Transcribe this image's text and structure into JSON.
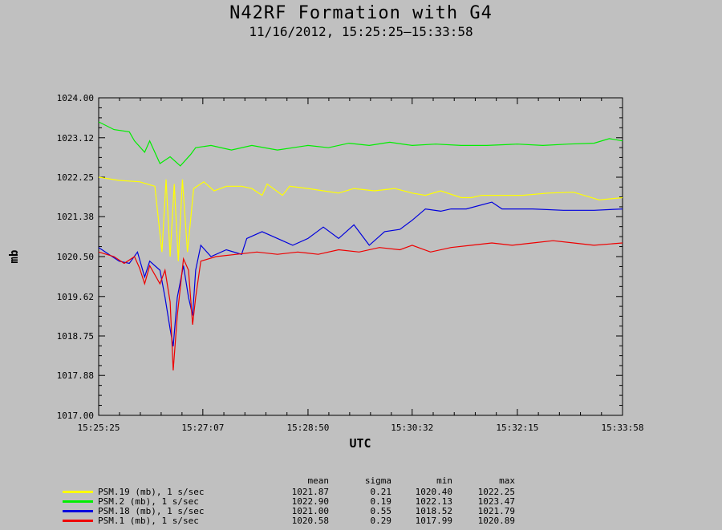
{
  "chart_data": {
    "type": "line",
    "title": "N42RF Formation with G4",
    "subtitle": "11/16/2012, 15:25:25–15:33:58",
    "xlabel": "UTC",
    "ylabel": "mb",
    "xlim": [
      "15:25:25",
      "15:33:58"
    ],
    "ylim": [
      1017.0,
      1024.0
    ],
    "x_ticks": [
      "15:25:25",
      "15:27:07",
      "15:28:50",
      "15:30:32",
      "15:32:15",
      "15:33:58"
    ],
    "y_ticks": [
      "1024.00",
      "1023.12",
      "1022.25",
      "1021.38",
      "1020.50",
      "1019.62",
      "1018.75",
      "1017.88",
      "1017.00"
    ],
    "grid": false,
    "legend_position": "bottom-left",
    "series": [
      {
        "name": "PSM.19 (mb), 1 s/sec",
        "color": "#ffff00",
        "points": [
          [
            "15:25:25",
            1022.25
          ],
          [
            "15:25:45",
            1022.18
          ],
          [
            "15:26:05",
            1022.15
          ],
          [
            "15:26:20",
            1022.05
          ],
          [
            "15:26:27",
            1020.6
          ],
          [
            "15:26:31",
            1022.2
          ],
          [
            "15:26:35",
            1020.5
          ],
          [
            "15:26:39",
            1022.1
          ],
          [
            "15:26:43",
            1020.4
          ],
          [
            "15:26:47",
            1022.2
          ],
          [
            "15:26:52",
            1020.6
          ],
          [
            "15:26:58",
            1022.0
          ],
          [
            "15:27:08",
            1022.15
          ],
          [
            "15:27:18",
            1021.95
          ],
          [
            "15:27:30",
            1022.05
          ],
          [
            "15:27:45",
            1022.05
          ],
          [
            "15:27:55",
            1022.0
          ],
          [
            "15:28:05",
            1021.85
          ],
          [
            "15:28:10",
            1022.1
          ],
          [
            "15:28:25",
            1021.85
          ],
          [
            "15:28:32",
            1022.05
          ],
          [
            "15:28:50",
            1022.0
          ],
          [
            "15:29:05",
            1021.95
          ],
          [
            "15:29:20",
            1021.9
          ],
          [
            "15:29:35",
            1022.0
          ],
          [
            "15:29:55",
            1021.95
          ],
          [
            "15:30:15",
            1022.0
          ],
          [
            "15:30:32",
            1021.9
          ],
          [
            "15:30:45",
            1021.85
          ],
          [
            "15:31:00",
            1021.95
          ],
          [
            "15:31:20",
            1021.8
          ],
          [
            "15:31:30",
            1021.8
          ],
          [
            "15:31:40",
            1021.85
          ],
          [
            "15:32:00",
            1021.85
          ],
          [
            "15:32:20",
            1021.85
          ],
          [
            "15:32:45",
            1021.9
          ],
          [
            "15:33:10",
            1021.92
          ],
          [
            "15:33:35",
            1021.75
          ],
          [
            "15:33:58",
            1021.8
          ]
        ],
        "stats": {
          "mean": "1021.87",
          "sigma": "0.21",
          "min": "1020.40",
          "max": "1022.25"
        }
      },
      {
        "name": "PSM.2 (mb), 1 s/sec",
        "color": "#00ee00",
        "points": [
          [
            "15:25:25",
            1023.47
          ],
          [
            "15:25:40",
            1023.3
          ],
          [
            "15:25:55",
            1023.25
          ],
          [
            "15:26:00",
            1023.05
          ],
          [
            "15:26:10",
            1022.8
          ],
          [
            "15:26:15",
            1023.05
          ],
          [
            "15:26:25",
            1022.55
          ],
          [
            "15:26:35",
            1022.7
          ],
          [
            "15:26:45",
            1022.5
          ],
          [
            "15:26:55",
            1022.75
          ],
          [
            "15:27:00",
            1022.9
          ],
          [
            "15:27:15",
            1022.95
          ],
          [
            "15:27:35",
            1022.85
          ],
          [
            "15:27:55",
            1022.95
          ],
          [
            "15:28:20",
            1022.85
          ],
          [
            "15:28:50",
            1022.95
          ],
          [
            "15:29:10",
            1022.9
          ],
          [
            "15:29:30",
            1023.0
          ],
          [
            "15:29:50",
            1022.95
          ],
          [
            "15:30:10",
            1023.02
          ],
          [
            "15:30:32",
            1022.95
          ],
          [
            "15:30:55",
            1022.98
          ],
          [
            "15:31:20",
            1022.95
          ],
          [
            "15:31:45",
            1022.95
          ],
          [
            "15:32:15",
            1022.98
          ],
          [
            "15:32:40",
            1022.95
          ],
          [
            "15:33:05",
            1022.98
          ],
          [
            "15:33:30",
            1023.0
          ],
          [
            "15:33:45",
            1023.1
          ],
          [
            "15:33:58",
            1023.05
          ]
        ],
        "stats": {
          "mean": "1022.90",
          "sigma": "0.19",
          "min": "1022.13",
          "max": "1023.47"
        }
      },
      {
        "name": "PSM.18 (mb), 1 s/sec",
        "color": "#0000dd",
        "points": [
          [
            "15:25:25",
            1020.7
          ],
          [
            "15:25:35",
            1020.55
          ],
          [
            "15:25:45",
            1020.4
          ],
          [
            "15:25:55",
            1020.35
          ],
          [
            "15:26:03",
            1020.6
          ],
          [
            "15:26:10",
            1020.05
          ],
          [
            "15:26:15",
            1020.4
          ],
          [
            "15:26:25",
            1020.2
          ],
          [
            "15:26:30",
            1019.6
          ],
          [
            "15:26:35",
            1018.9
          ],
          [
            "15:26:38",
            1018.52
          ],
          [
            "15:26:42",
            1019.6
          ],
          [
            "15:26:48",
            1020.3
          ],
          [
            "15:26:53",
            1019.6
          ],
          [
            "15:26:57",
            1019.2
          ],
          [
            "15:27:00",
            1020.2
          ],
          [
            "15:27:05",
            1020.75
          ],
          [
            "15:27:15",
            1020.5
          ],
          [
            "15:27:30",
            1020.65
          ],
          [
            "15:27:45",
            1020.55
          ],
          [
            "15:27:50",
            1020.9
          ],
          [
            "15:28:05",
            1021.05
          ],
          [
            "15:28:25",
            1020.85
          ],
          [
            "15:28:35",
            1020.75
          ],
          [
            "15:28:50",
            1020.9
          ],
          [
            "15:29:05",
            1021.15
          ],
          [
            "15:29:20",
            1020.9
          ],
          [
            "15:29:35",
            1021.2
          ],
          [
            "15:29:50",
            1020.75
          ],
          [
            "15:30:05",
            1021.05
          ],
          [
            "15:30:20",
            1021.1
          ],
          [
            "15:30:32",
            1021.3
          ],
          [
            "15:30:45",
            1021.55
          ],
          [
            "15:31:00",
            1021.5
          ],
          [
            "15:31:10",
            1021.55
          ],
          [
            "15:31:25",
            1021.55
          ],
          [
            "15:31:50",
            1021.7
          ],
          [
            "15:32:00",
            1021.55
          ],
          [
            "15:32:30",
            1021.55
          ],
          [
            "15:33:00",
            1021.52
          ],
          [
            "15:33:30",
            1021.52
          ],
          [
            "15:33:58",
            1021.55
          ]
        ],
        "stats": {
          "mean": "1021.00",
          "sigma": "0.55",
          "min": "1018.52",
          "max": "1021.79"
        }
      },
      {
        "name": "PSM.1 (mb), 1 s/sec",
        "color": "#ee0000",
        "points": [
          [
            "15:25:25",
            1020.6
          ],
          [
            "15:25:40",
            1020.5
          ],
          [
            "15:25:50",
            1020.35
          ],
          [
            "15:26:00",
            1020.5
          ],
          [
            "15:26:05",
            1020.25
          ],
          [
            "15:26:10",
            1019.9
          ],
          [
            "15:26:15",
            1020.3
          ],
          [
            "15:26:25",
            1019.9
          ],
          [
            "15:26:30",
            1020.2
          ],
          [
            "15:26:35",
            1019.5
          ],
          [
            "15:26:38",
            1017.99
          ],
          [
            "15:26:42",
            1019.2
          ],
          [
            "15:26:48",
            1020.45
          ],
          [
            "15:26:53",
            1020.2
          ],
          [
            "15:26:57",
            1019.0
          ],
          [
            "15:27:00",
            1019.6
          ],
          [
            "15:27:05",
            1020.4
          ],
          [
            "15:27:20",
            1020.5
          ],
          [
            "15:27:40",
            1020.55
          ],
          [
            "15:28:00",
            1020.6
          ],
          [
            "15:28:20",
            1020.55
          ],
          [
            "15:28:40",
            1020.6
          ],
          [
            "15:29:00",
            1020.55
          ],
          [
            "15:29:20",
            1020.65
          ],
          [
            "15:29:40",
            1020.6
          ],
          [
            "15:30:00",
            1020.7
          ],
          [
            "15:30:20",
            1020.65
          ],
          [
            "15:30:32",
            1020.75
          ],
          [
            "15:30:50",
            1020.6
          ],
          [
            "15:31:10",
            1020.7
          ],
          [
            "15:31:30",
            1020.75
          ],
          [
            "15:31:50",
            1020.8
          ],
          [
            "15:32:10",
            1020.75
          ],
          [
            "15:32:30",
            1020.8
          ],
          [
            "15:32:50",
            1020.85
          ],
          [
            "15:33:10",
            1020.8
          ],
          [
            "15:33:30",
            1020.75
          ],
          [
            "15:33:58",
            1020.8
          ]
        ],
        "stats": {
          "mean": "1020.58",
          "sigma": "0.29",
          "min": "1017.99",
          "max": "1020.89"
        }
      }
    ]
  },
  "legend": {
    "headers": {
      "mean": "mean",
      "sigma": "sigma",
      "min": "min",
      "max": "max"
    }
  }
}
